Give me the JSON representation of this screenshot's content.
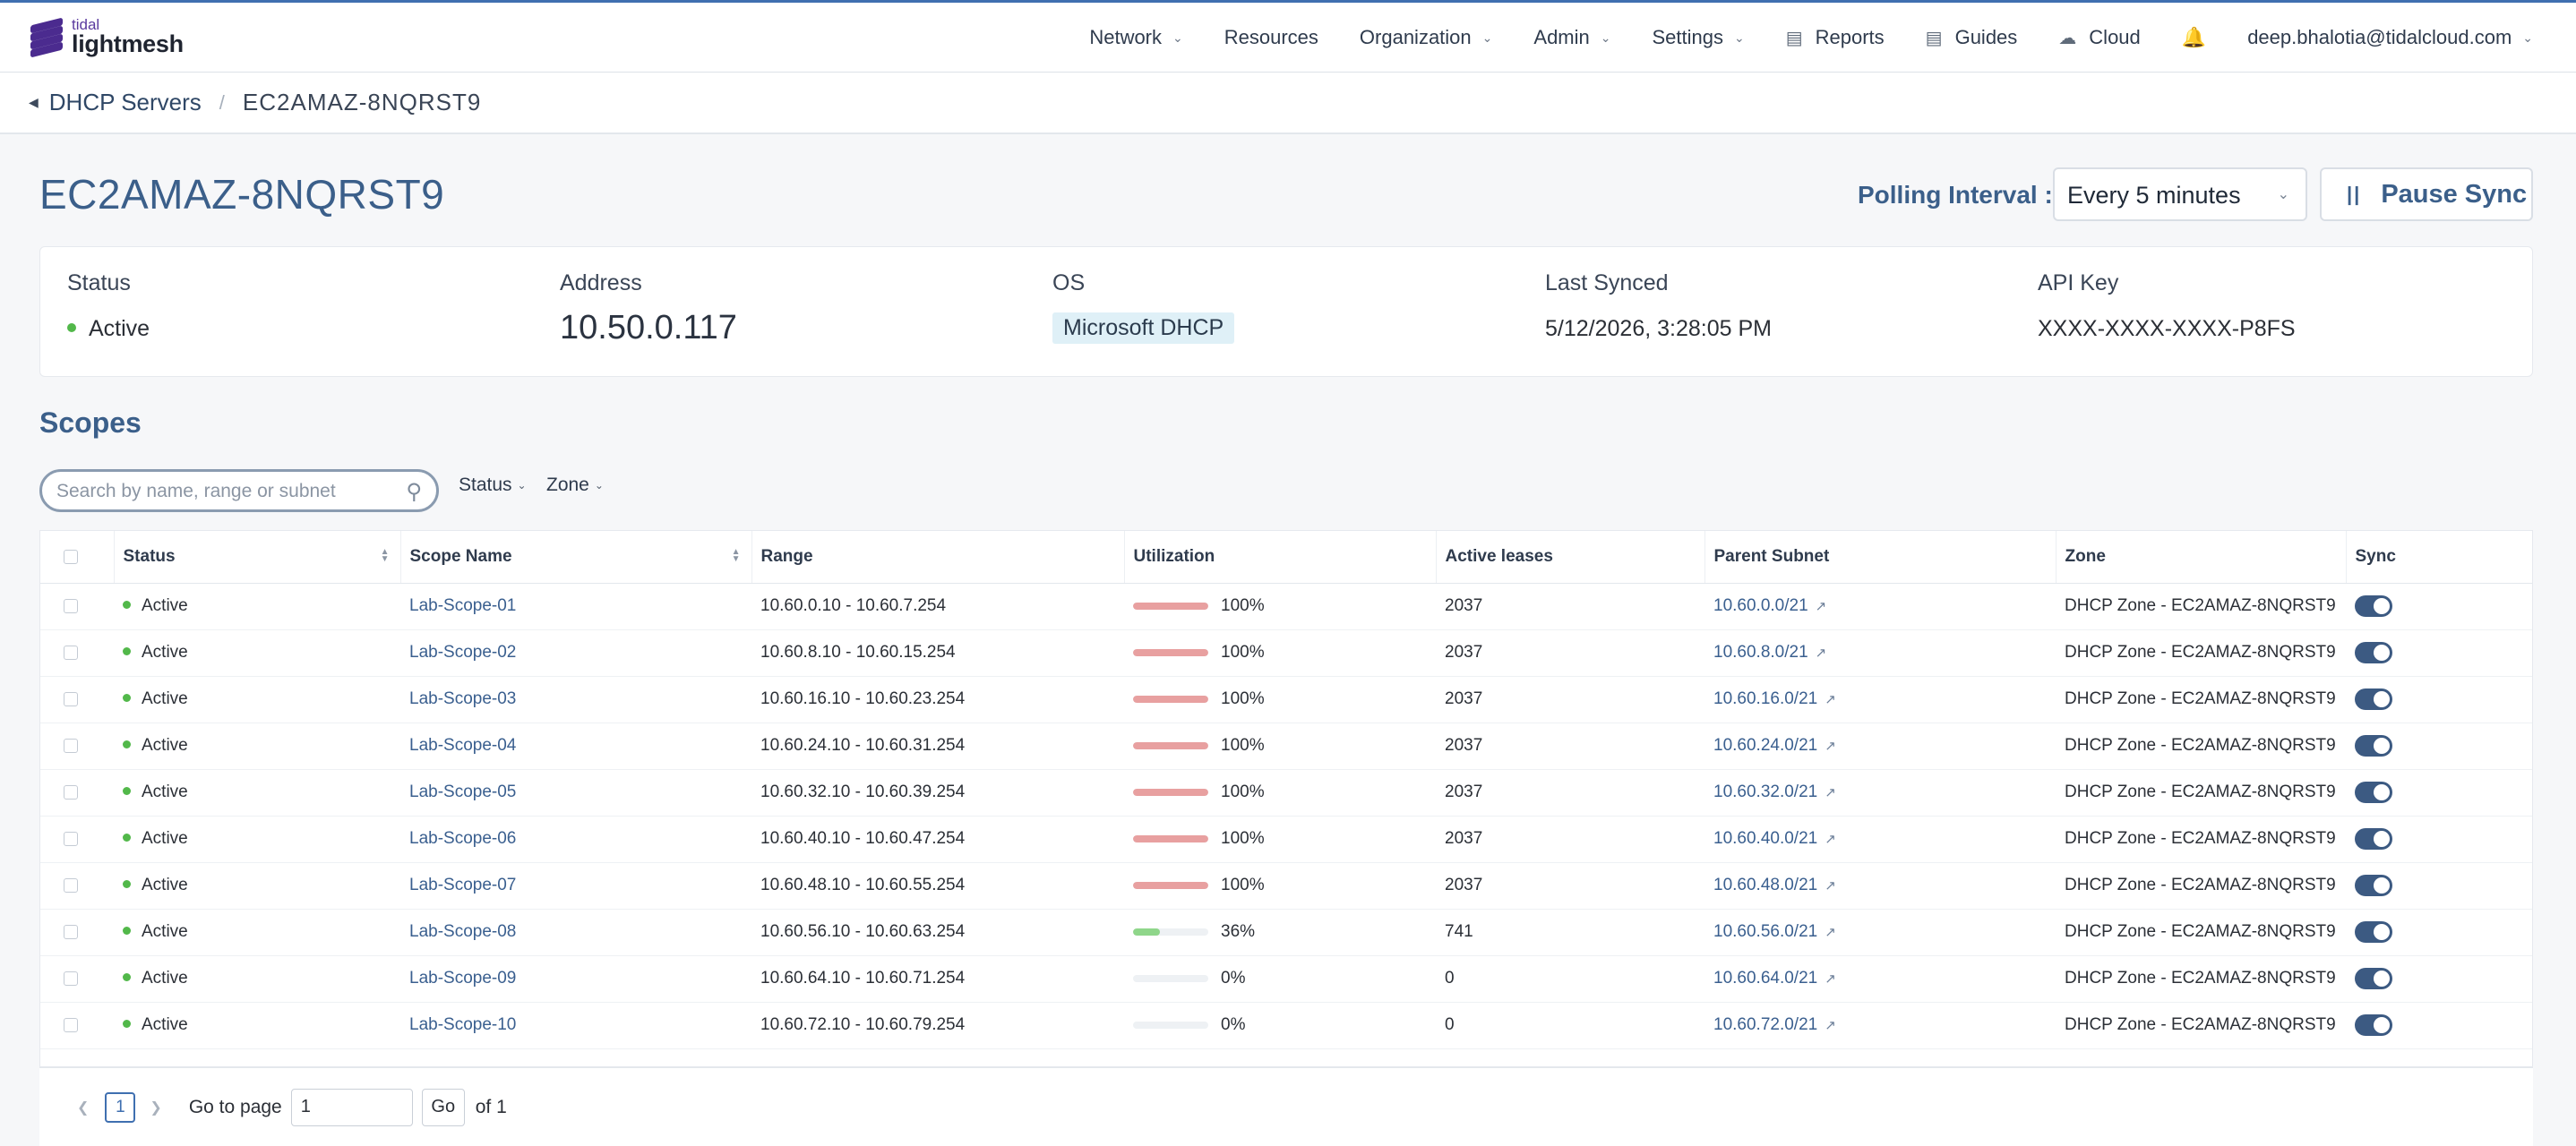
{
  "brand": {
    "line1": "tidal",
    "line2": "lightmesh"
  },
  "nav": {
    "items": [
      {
        "label": "Network",
        "dropdown": true
      },
      {
        "label": "Resources",
        "dropdown": false
      },
      {
        "label": "Organization",
        "dropdown": true
      },
      {
        "label": "Admin",
        "dropdown": true
      },
      {
        "label": "Settings",
        "dropdown": true
      },
      {
        "label": "Reports",
        "icon": "bar-chart-icon"
      },
      {
        "label": "Guides",
        "icon": "book-icon"
      },
      {
        "label": "Cloud",
        "icon": "cloud-icon"
      }
    ],
    "user": "deep.bhalotia@tidalcloud.com"
  },
  "breadcrumb": {
    "parent": "DHCP Servers",
    "current": "EC2AMAZ-8NQRST9"
  },
  "page": {
    "title": "EC2AMAZ-8NQRST9",
    "polling_label": "Polling Interval :",
    "polling_value": "Every 5 minutes",
    "pause_label": "Pause Sync"
  },
  "info": {
    "status_label": "Status",
    "status_value": "Active",
    "address_label": "Address",
    "address_value": "10.50.0.117",
    "os_label": "OS",
    "os_value": "Microsoft DHCP",
    "synced_label": "Last Synced",
    "synced_value": "5/12/2026, 3:28:05 PM",
    "api_label": "API Key",
    "api_value": "XXXX-XXXX-XXXX-P8FS"
  },
  "scopes": {
    "title": "Scopes",
    "search_placeholder": "Search by name, range or subnet",
    "filters": [
      "Status",
      "Zone"
    ],
    "columns": [
      "Status",
      "Scope Name",
      "Range",
      "Utilization",
      "Active leases",
      "Parent Subnet",
      "Zone",
      "Sync"
    ],
    "rows": [
      {
        "status": "Active",
        "name": "Lab-Scope-01",
        "range": "10.60.0.10 - 10.60.7.254",
        "util": 100,
        "util_label": "100%",
        "leases": "2037",
        "subnet": "10.60.0.0/21",
        "zone": "DHCP Zone - EC2AMAZ-8NQRST9"
      },
      {
        "status": "Active",
        "name": "Lab-Scope-02",
        "range": "10.60.8.10 - 10.60.15.254",
        "util": 100,
        "util_label": "100%",
        "leases": "2037",
        "subnet": "10.60.8.0/21",
        "zone": "DHCP Zone - EC2AMAZ-8NQRST9"
      },
      {
        "status": "Active",
        "name": "Lab-Scope-03",
        "range": "10.60.16.10 - 10.60.23.254",
        "util": 100,
        "util_label": "100%",
        "leases": "2037",
        "subnet": "10.60.16.0/21",
        "zone": "DHCP Zone - EC2AMAZ-8NQRST9"
      },
      {
        "status": "Active",
        "name": "Lab-Scope-04",
        "range": "10.60.24.10 - 10.60.31.254",
        "util": 100,
        "util_label": "100%",
        "leases": "2037",
        "subnet": "10.60.24.0/21",
        "zone": "DHCP Zone - EC2AMAZ-8NQRST9"
      },
      {
        "status": "Active",
        "name": "Lab-Scope-05",
        "range": "10.60.32.10 - 10.60.39.254",
        "util": 100,
        "util_label": "100%",
        "leases": "2037",
        "subnet": "10.60.32.0/21",
        "zone": "DHCP Zone - EC2AMAZ-8NQRST9"
      },
      {
        "status": "Active",
        "name": "Lab-Scope-06",
        "range": "10.60.40.10 - 10.60.47.254",
        "util": 100,
        "util_label": "100%",
        "leases": "2037",
        "subnet": "10.60.40.0/21",
        "zone": "DHCP Zone - EC2AMAZ-8NQRST9"
      },
      {
        "status": "Active",
        "name": "Lab-Scope-07",
        "range": "10.60.48.10 - 10.60.55.254",
        "util": 100,
        "util_label": "100%",
        "leases": "2037",
        "subnet": "10.60.48.0/21",
        "zone": "DHCP Zone - EC2AMAZ-8NQRST9"
      },
      {
        "status": "Active",
        "name": "Lab-Scope-08",
        "range": "10.60.56.10 - 10.60.63.254",
        "util": 36,
        "util_label": "36%",
        "leases": "741",
        "subnet": "10.60.56.0/21",
        "zone": "DHCP Zone - EC2AMAZ-8NQRST9"
      },
      {
        "status": "Active",
        "name": "Lab-Scope-09",
        "range": "10.60.64.10 - 10.60.71.254",
        "util": 0,
        "util_label": "0%",
        "leases": "0",
        "subnet": "10.60.64.0/21",
        "zone": "DHCP Zone - EC2AMAZ-8NQRST9"
      },
      {
        "status": "Active",
        "name": "Lab-Scope-10",
        "range": "10.60.72.10 - 10.60.79.254",
        "util": 0,
        "util_label": "0%",
        "leases": "0",
        "subnet": "10.60.72.0/21",
        "zone": "DHCP Zone - EC2AMAZ-8NQRST9"
      }
    ]
  },
  "pagination": {
    "page": "1",
    "goto_label": "Go to page",
    "goto_value": "1",
    "go_label": "Go",
    "of_label": "of 1"
  },
  "colors": {
    "accent": "#3b5f8a",
    "util_full": "#e8a0a0",
    "util_partial": "#8fd68a",
    "active": "#52b84a",
    "toggle": "#3c5a82"
  }
}
